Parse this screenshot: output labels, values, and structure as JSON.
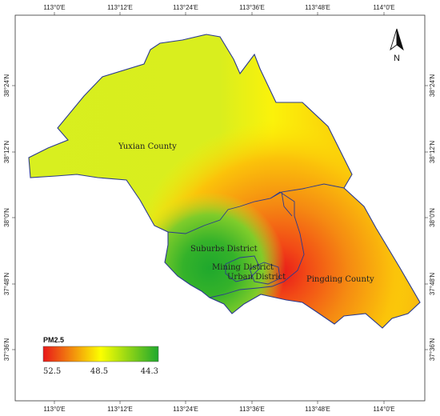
{
  "map": {
    "ticks_top": [
      "113°0′E",
      "113°12′E",
      "113°24′E",
      "113°36′E",
      "113°48′E",
      "114°0′E"
    ],
    "ticks_bottom": [
      "113°0′E",
      "113°12′E",
      "113°24′E",
      "113°36′E",
      "113°48′E",
      "114°0′E"
    ],
    "ticks_left": [
      "38°24′N",
      "38°12′N",
      "38°0′N",
      "37°48′N",
      "37°36′N"
    ],
    "ticks_right": [
      "38°24′N",
      "38°12′N",
      "38°0′N",
      "37°48′N",
      "37°36′N"
    ],
    "regions": {
      "yuxian": "Yuxian County",
      "suburbs": "Suburbs District",
      "mining": "Mining District",
      "urban": "Urban District",
      "pingding": "Pingding County"
    },
    "north_label": "N",
    "legend": {
      "title": "PM2.5",
      "max_label": "52.5",
      "mid_label": "48.5",
      "min_label": "44.3"
    },
    "colors": {
      "high": "#e8181a",
      "orange": "#f58a12",
      "yellow": "#fcff00",
      "yellow_green": "#d2ef1e",
      "green": "#1fa82d",
      "boundary": "#2b3a8f"
    }
  }
}
